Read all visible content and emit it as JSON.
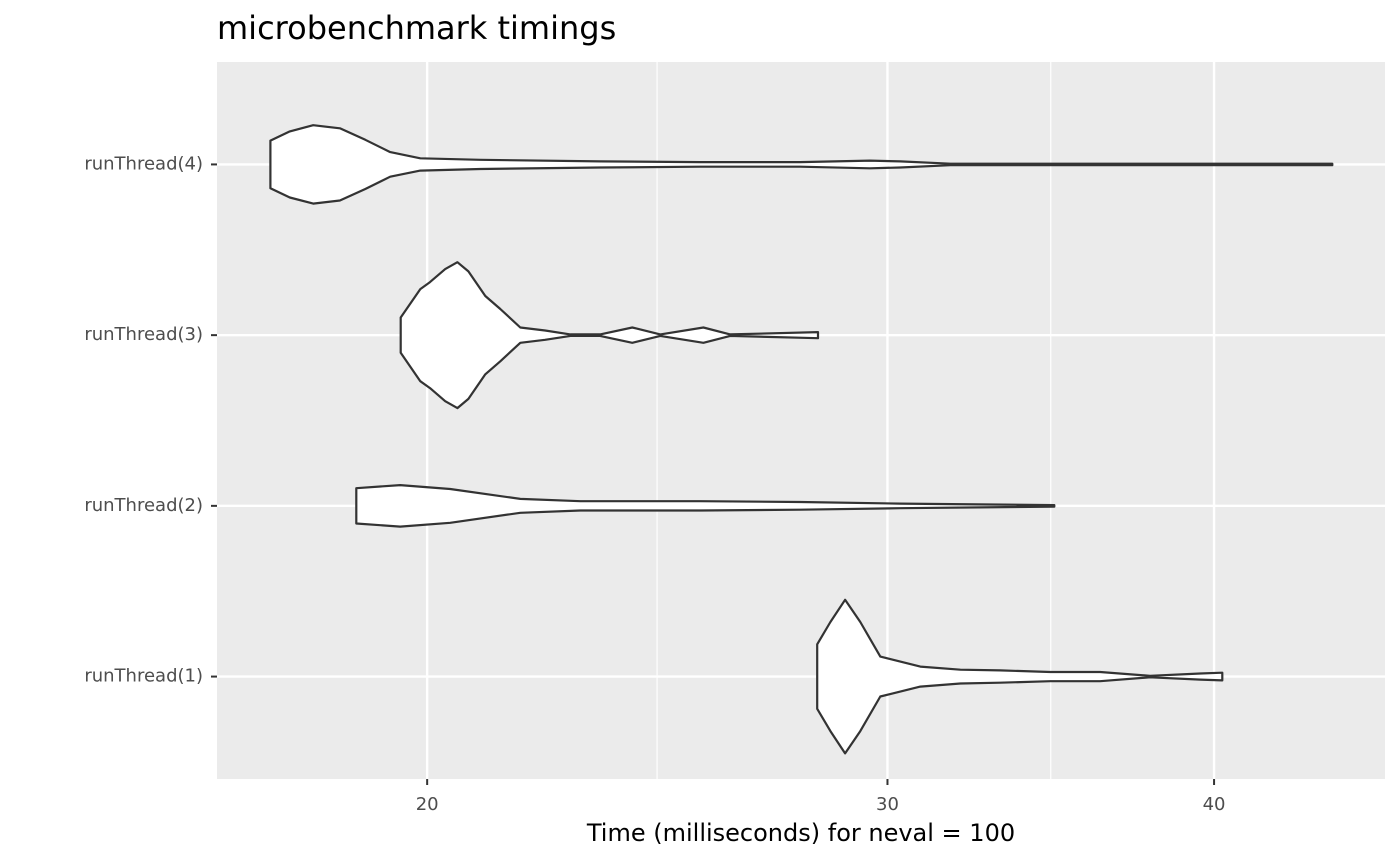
{
  "chart_data": {
    "type": "violin",
    "title": "microbenchmark timings",
    "xlabel": "Time (milliseconds) for neval = 100",
    "categories": [
      "runThread(1)",
      "runThread(2)",
      "runThread(3)",
      "runThread(4)"
    ],
    "violins": [
      {
        "x": [
          28.2,
          28.53,
          28.9,
          29.29,
          29.81,
          30.88,
          31.99,
          33.13,
          34.63,
          36.18,
          37.81,
          39.52,
          40.29
        ],
        "density": [
          0.42,
          0.71,
          1,
          0.71,
          0.26,
          0.13,
          0.09,
          0.08,
          0.06,
          0.06,
          0.01,
          0.04,
          0.05
        ]
      },
      {
        "x": [
          18.79,
          19.53,
          20.41,
          21.71,
          22.89,
          25.44,
          27.78,
          30.34,
          34.75
        ],
        "density": [
          0.23,
          0.27,
          0.22,
          0.09,
          0.06,
          0.06,
          0.05,
          0.03,
          0.01
        ]
      },
      {
        "x": [
          19.54,
          19.88,
          20.05,
          20.32,
          20.54,
          20.74,
          21.05,
          21.33,
          21.71,
          22.19,
          22.69,
          23.29,
          23.96,
          24.56,
          25.51,
          26.12,
          28.22
        ],
        "density": [
          0.23,
          0.6,
          0.69,
          0.86,
          0.95,
          0.83,
          0.51,
          0.34,
          0.1,
          0.06,
          0.01,
          0.01,
          0.1,
          0.01,
          0.1,
          0.01,
          0.04
        ]
      },
      {
        "x": [
          17.42,
          17.72,
          18.09,
          18.52,
          18.94,
          19.36,
          19.88,
          20.96,
          23.29,
          25.44,
          27.78,
          29.54,
          30.34,
          31.71,
          36.18,
          44.39
        ],
        "density": [
          0.31,
          0.43,
          0.51,
          0.47,
          0.32,
          0.16,
          0.08,
          0.06,
          0.04,
          0.03,
          0.03,
          0.05,
          0.04,
          0.01,
          0.01,
          0.01
        ]
      }
    ],
    "fill": "#ffffff",
    "stroke": "#333333",
    "xscale": "log",
    "xlim": [
      16.62,
      46.5
    ],
    "xticks": [
      20,
      30,
      40
    ],
    "xminor": [
      24.49,
      34.64
    ],
    "grid": true
  }
}
